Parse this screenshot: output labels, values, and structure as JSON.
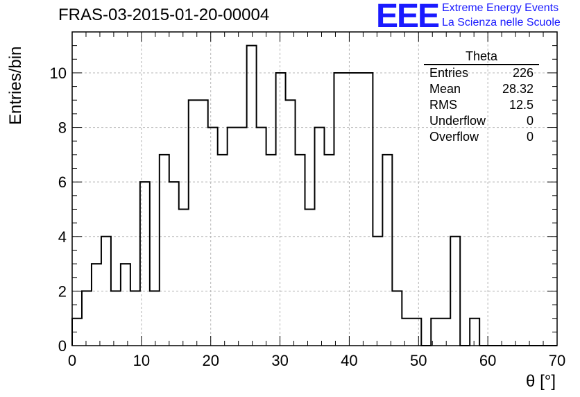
{
  "header": {
    "title": "FRAS-03-2015-01-20-00004",
    "logo_text": "EEE",
    "logo_line1": "Extreme Energy Events",
    "logo_line2": "La Scienza nelle Scuole"
  },
  "stats": {
    "title": "Theta",
    "rows": [
      {
        "key": "Entries",
        "value": "226"
      },
      {
        "key": "Mean",
        "value": "28.32"
      },
      {
        "key": "RMS",
        "value": "12.5"
      },
      {
        "key": "Underflow",
        "value": "0"
      },
      {
        "key": "Overflow",
        "value": "0"
      }
    ]
  },
  "colors": {
    "logo": "#1a1aff",
    "line": "#000000",
    "grid": "#b4b4b4"
  },
  "chart_data": {
    "type": "bar",
    "subtype": "step-histogram",
    "title": "FRAS-03-2015-01-20-00004",
    "xlabel": "θ [°]",
    "ylabel": "Entries/bin",
    "xlim": [
      0,
      70
    ],
    "ylim": [
      0,
      11.5
    ],
    "bin_width": 1.4,
    "bin_edges_start": 0,
    "xticks": [
      0,
      10,
      20,
      30,
      40,
      50,
      60,
      70
    ],
    "yticks": [
      0,
      2,
      4,
      6,
      8,
      10
    ],
    "grid": true,
    "values": [
      1,
      2,
      3,
      4,
      2,
      3,
      2,
      6,
      2,
      7,
      6,
      5,
      9,
      9,
      8,
      7,
      8,
      8,
      11,
      8,
      7,
      10,
      9,
      7,
      5,
      8,
      7,
      10,
      10,
      10,
      10,
      4,
      7,
      2,
      1,
      1,
      0,
      1,
      1,
      4,
      0,
      1,
      0,
      0,
      0,
      0,
      0,
      0,
      0,
      0
    ]
  }
}
